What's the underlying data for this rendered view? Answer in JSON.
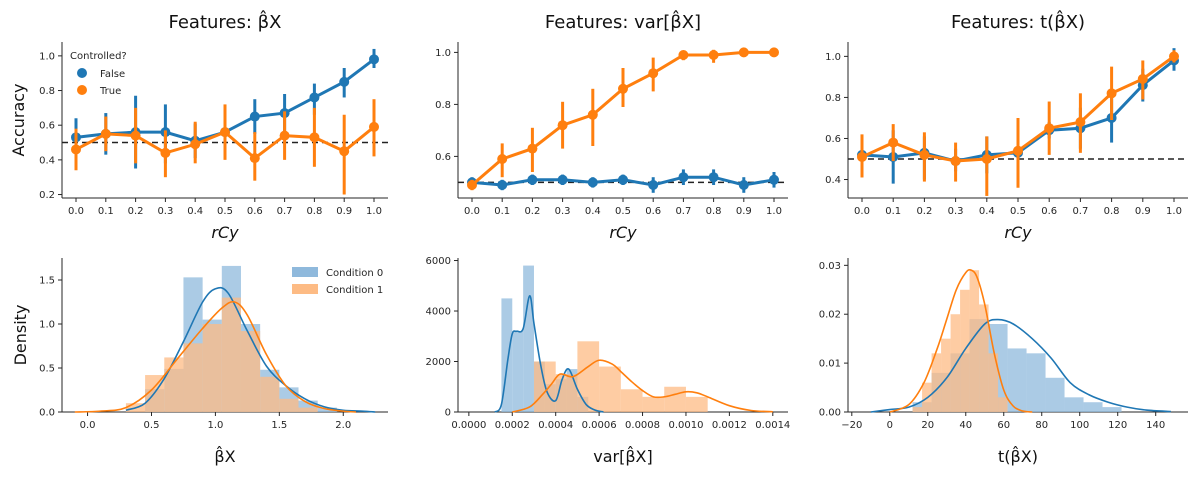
{
  "colors": {
    "blue": "#1f77b4",
    "orange": "#ff7f0e",
    "hist_blue": "#8fb9dc",
    "hist_orange": "#fdbb84"
  },
  "ylabels": {
    "top": "Accuracy",
    "bottom": "Density"
  },
  "legend_top": {
    "title": "Controlled?",
    "entries": [
      "False",
      "True"
    ]
  },
  "legend_bottom": {
    "entries": [
      "Condition 0",
      "Condition 1"
    ]
  },
  "chart_data": [
    {
      "type": "line",
      "title": "Features: β̂X",
      "xlabel": "rCy",
      "ylabel": "Accuracy",
      "categories": [
        "0.0",
        "0.1",
        "0.2",
        "0.3",
        "0.4",
        "0.5",
        "0.6",
        "0.7",
        "0.8",
        "0.9",
        "1.0"
      ],
      "ylim": [
        0.18,
        1.08
      ],
      "yticks": [
        "0.2",
        "0.4",
        "0.6",
        "0.8",
        "1.0"
      ],
      "reference_line": 0.5,
      "series": [
        {
          "name": "False",
          "values": [
            0.53,
            0.55,
            0.56,
            0.56,
            0.51,
            0.56,
            0.65,
            0.67,
            0.76,
            0.85,
            0.98
          ],
          "err_low": [
            0.43,
            0.43,
            0.35,
            0.38,
            0.41,
            0.48,
            0.55,
            0.56,
            0.66,
            0.76,
            0.93
          ],
          "err_high": [
            0.64,
            0.67,
            0.77,
            0.72,
            0.61,
            0.64,
            0.75,
            0.78,
            0.84,
            0.93,
            1.04
          ]
        },
        {
          "name": "True",
          "values": [
            0.46,
            0.55,
            0.54,
            0.44,
            0.49,
            0.56,
            0.41,
            0.54,
            0.53,
            0.45,
            0.59
          ],
          "err_low": [
            0.34,
            0.45,
            0.38,
            0.3,
            0.38,
            0.4,
            0.28,
            0.4,
            0.36,
            0.2,
            0.42
          ],
          "err_high": [
            0.58,
            0.65,
            0.7,
            0.57,
            0.62,
            0.72,
            0.56,
            0.68,
            0.7,
            0.66,
            0.75
          ]
        }
      ]
    },
    {
      "type": "line",
      "title": "Features: var[β̂X]",
      "xlabel": "rCy",
      "ylabel": "",
      "categories": [
        "0.0",
        "0.1",
        "0.2",
        "0.3",
        "0.4",
        "0.5",
        "0.6",
        "0.7",
        "0.8",
        "0.9",
        "1.0"
      ],
      "ylim": [
        0.44,
        1.04
      ],
      "yticks": [
        "0.6",
        "0.8",
        "1.0"
      ],
      "reference_line": 0.5,
      "series": [
        {
          "name": "False",
          "values": [
            0.5,
            0.49,
            0.51,
            0.51,
            0.5,
            0.51,
            0.49,
            0.52,
            0.52,
            0.49,
            0.51
          ],
          "err_low": [
            0.48,
            0.47,
            0.49,
            0.49,
            0.48,
            0.49,
            0.46,
            0.49,
            0.49,
            0.46,
            0.48
          ],
          "err_high": [
            0.52,
            0.51,
            0.53,
            0.53,
            0.52,
            0.53,
            0.52,
            0.55,
            0.55,
            0.52,
            0.54
          ]
        },
        {
          "name": "True",
          "values": [
            0.49,
            0.59,
            0.63,
            0.72,
            0.76,
            0.86,
            0.92,
            0.99,
            0.99,
            1.0,
            1.0
          ],
          "err_low": [
            0.47,
            0.52,
            0.54,
            0.63,
            0.64,
            0.79,
            0.85,
            0.97,
            0.96,
            0.99,
            0.99
          ],
          "err_high": [
            0.51,
            0.65,
            0.71,
            0.81,
            0.86,
            0.94,
            0.98,
            1.0,
            1.01,
            1.01,
            1.01
          ]
        }
      ]
    },
    {
      "type": "line",
      "title": "Features: t(β̂X)",
      "xlabel": "rCy",
      "ylabel": "",
      "categories": [
        "0.0",
        "0.1",
        "0.2",
        "0.3",
        "0.4",
        "0.5",
        "0.6",
        "0.7",
        "0.8",
        "0.9",
        "1.0"
      ],
      "ylim": [
        0.31,
        1.07
      ],
      "yticks": [
        "0.4",
        "0.6",
        "0.8",
        "1.0"
      ],
      "reference_line": 0.5,
      "series": [
        {
          "name": "False",
          "values": [
            0.52,
            0.51,
            0.53,
            0.49,
            0.52,
            0.53,
            0.64,
            0.65,
            0.7,
            0.86,
            0.98
          ],
          "err_low": [
            0.46,
            0.38,
            0.4,
            0.44,
            0.43,
            0.49,
            0.6,
            0.55,
            0.58,
            0.78,
            0.93
          ],
          "err_high": [
            0.58,
            0.64,
            0.61,
            0.55,
            0.61,
            0.6,
            0.68,
            0.75,
            0.82,
            0.94,
            1.04
          ]
        },
        {
          "name": "True",
          "values": [
            0.51,
            0.58,
            0.52,
            0.49,
            0.5,
            0.54,
            0.65,
            0.68,
            0.82,
            0.89,
            1.0
          ],
          "err_low": [
            0.41,
            0.49,
            0.39,
            0.39,
            0.32,
            0.36,
            0.52,
            0.53,
            0.69,
            0.79,
            0.97
          ],
          "err_high": [
            0.62,
            0.67,
            0.63,
            0.58,
            0.61,
            0.7,
            0.78,
            0.82,
            0.95,
            0.98,
            1.03
          ]
        }
      ]
    },
    {
      "type": "histogram",
      "xlabel": "β̂X",
      "ylabel": "Density",
      "xlim": [
        -0.2,
        2.35
      ],
      "ylim": [
        0,
        1.75
      ],
      "xticks": [
        "0.0",
        "0.5",
        "1.0",
        "1.5",
        "2.0"
      ],
      "yticks": [
        "0.0",
        "0.5",
        "1.0",
        "1.5"
      ],
      "series": [
        {
          "name": "Condition 0",
          "bin_edges": [
            0.45,
            0.6,
            0.75,
            0.9,
            1.05,
            1.2,
            1.35,
            1.5,
            1.65,
            1.8,
            1.95
          ],
          "values": [
            0.26,
            0.49,
            1.53,
            1.05,
            1.66,
            1.0,
            0.48,
            0.28,
            0.13,
            0.05
          ],
          "kde_x": [
            0.3,
            0.45,
            0.6,
            0.75,
            0.9,
            1.0,
            1.1,
            1.25,
            1.4,
            1.55,
            1.7,
            1.85,
            2.0,
            2.15,
            2.25
          ],
          "kde_y": [
            0.02,
            0.1,
            0.38,
            0.8,
            1.25,
            1.4,
            1.35,
            0.92,
            0.52,
            0.3,
            0.15,
            0.06,
            0.02,
            0.01,
            0.0
          ]
        },
        {
          "name": "Condition 1",
          "bin_edges": [
            0.3,
            0.45,
            0.6,
            0.75,
            0.9,
            1.05,
            1.2,
            1.35,
            1.5,
            1.65,
            1.8
          ],
          "values": [
            0.1,
            0.42,
            0.62,
            0.78,
            1.0,
            1.3,
            0.92,
            0.4,
            0.15,
            0.05
          ],
          "kde_x": [
            -0.1,
            0.1,
            0.3,
            0.5,
            0.7,
            0.9,
            1.05,
            1.15,
            1.25,
            1.4,
            1.55,
            1.7,
            1.85,
            2.0,
            2.1
          ],
          "kde_y": [
            0.0,
            0.01,
            0.05,
            0.25,
            0.6,
            0.95,
            1.18,
            1.25,
            1.1,
            0.65,
            0.3,
            0.12,
            0.04,
            0.01,
            0.0
          ]
        }
      ]
    },
    {
      "type": "histogram",
      "xlabel": "var[β̂X]",
      "ylabel": "",
      "xlim": [
        -5e-05,
        0.00147
      ],
      "ylim": [
        0,
        6100
      ],
      "xticks": [
        "0.0000",
        "0.0002",
        "0.0004",
        "0.0006",
        "0.0008",
        "0.0010",
        "0.0012",
        "0.0014"
      ],
      "yticks": [
        "0",
        "2000",
        "4000",
        "6000"
      ],
      "series": [
        {
          "name": "Condition 0",
          "bin_edges": [
            0.00015,
            0.0002,
            0.00025,
            0.0003,
            0.00035,
            0.0004,
            0.00045,
            0.0005,
            0.00055
          ],
          "values": [
            4500,
            3200,
            5800,
            2000,
            1100,
            1300,
            1700,
            600
          ],
          "kde_x": [
            0.00012,
            0.00015,
            0.00018,
            0.0002,
            0.00022,
            0.00025,
            0.00028,
            0.0003,
            0.00033,
            0.00036,
            0.0004,
            0.00043,
            0.00046,
            0.0005,
            0.00054,
            0.00058,
            0.00062
          ],
          "kde_y": [
            0,
            300,
            2100,
            3100,
            3200,
            3300,
            4600,
            3500,
            1900,
            800,
            450,
            1300,
            1700,
            900,
            300,
            80,
            0
          ]
        },
        {
          "name": "Condition 1",
          "bin_edges": [
            0.0003,
            0.0004,
            0.0005,
            0.0006,
            0.0007,
            0.0008,
            0.0009,
            0.001,
            0.0011
          ],
          "values": [
            2000,
            1500,
            2800,
            1800,
            900,
            600,
            1000,
            600
          ],
          "kde_x": [
            0.0002,
            0.00028,
            0.00034,
            0.00038,
            0.00042,
            0.00048,
            0.00055,
            0.0006,
            0.00066,
            0.0007,
            0.00075,
            0.0008,
            0.00085,
            0.0009,
            0.00095,
            0.001,
            0.00105,
            0.0011,
            0.0012,
            0.0013,
            0.0014
          ],
          "kde_y": [
            0,
            200,
            700,
            1100,
            1500,
            1400,
            1800,
            2050,
            1900,
            1600,
            1200,
            850,
            600,
            600,
            700,
            800,
            760,
            600,
            250,
            60,
            10
          ]
        }
      ]
    },
    {
      "type": "histogram",
      "xlabel": "t(β̂X)",
      "ylabel": "",
      "xlim": [
        -22,
        157
      ],
      "ylim": [
        0,
        0.0315
      ],
      "xticks": [
        "−20",
        "0",
        "20",
        "40",
        "60",
        "80",
        "100",
        "120",
        "140"
      ],
      "yticks": [
        "0.00",
        "0.01",
        "0.02",
        "0.03"
      ],
      "series": [
        {
          "name": "Condition 0",
          "bin_edges": [
            12,
            22,
            32,
            42,
            52,
            62,
            72,
            82,
            92,
            102,
            112,
            122
          ],
          "values": [
            0.002,
            0.008,
            0.012,
            0.019,
            0.018,
            0.013,
            0.012,
            0.007,
            0.003,
            0.002,
            0.001
          ],
          "kde_x": [
            -10,
            0,
            10,
            20,
            30,
            40,
            50,
            57,
            65,
            75,
            85,
            95,
            105,
            115,
            125,
            135,
            148
          ],
          "kde_y": [
            0,
            0.0005,
            0.001,
            0.003,
            0.007,
            0.013,
            0.018,
            0.0189,
            0.018,
            0.015,
            0.011,
            0.006,
            0.0035,
            0.002,
            0.001,
            0.0004,
            0.0001
          ]
        },
        {
          "name": "Condition 1",
          "bin_edges": [
            12,
            17,
            22,
            27,
            32,
            37,
            42,
            47,
            52,
            57,
            62
          ],
          "values": [
            0.001,
            0.006,
            0.012,
            0.015,
            0.02,
            0.025,
            0.029,
            0.022,
            0.012,
            0.003
          ],
          "kde_x": [
            0,
            10,
            18,
            25,
            30,
            35,
            40,
            43,
            46,
            50,
            55,
            60,
            65,
            70,
            75
          ],
          "kde_y": [
            0,
            0.0015,
            0.006,
            0.013,
            0.019,
            0.025,
            0.0285,
            0.029,
            0.0275,
            0.022,
            0.012,
            0.0045,
            0.0012,
            0.0002,
            0
          ]
        }
      ]
    }
  ]
}
